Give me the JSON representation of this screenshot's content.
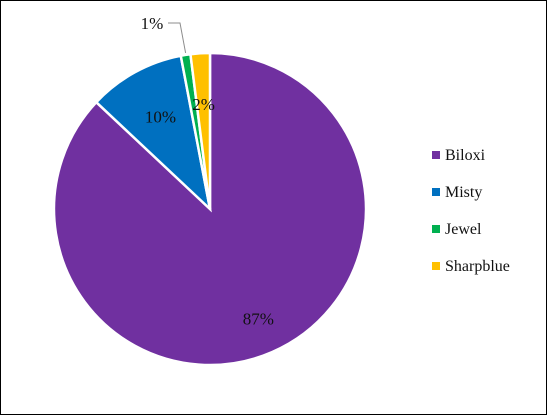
{
  "chart_data": {
    "type": "pie",
    "title": "",
    "categories": [
      "Biloxi",
      "Misty",
      "Jewel",
      "Sharpblue"
    ],
    "values": [
      87,
      10,
      1,
      2
    ],
    "labels": [
      "87%",
      "10%",
      "1%",
      "2%"
    ],
    "colors": [
      "#7030a0",
      "#0070c0",
      "#00b050",
      "#ffc000"
    ],
    "legend": "right"
  }
}
